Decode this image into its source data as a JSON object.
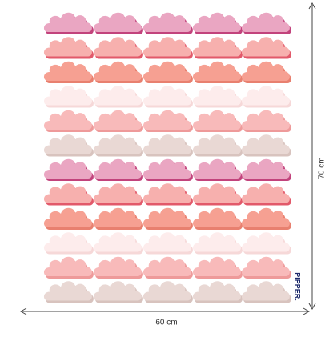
{
  "dimensions": {
    "width": "60 cm",
    "height": "70 cm"
  },
  "brand": "PIPPER."
}
